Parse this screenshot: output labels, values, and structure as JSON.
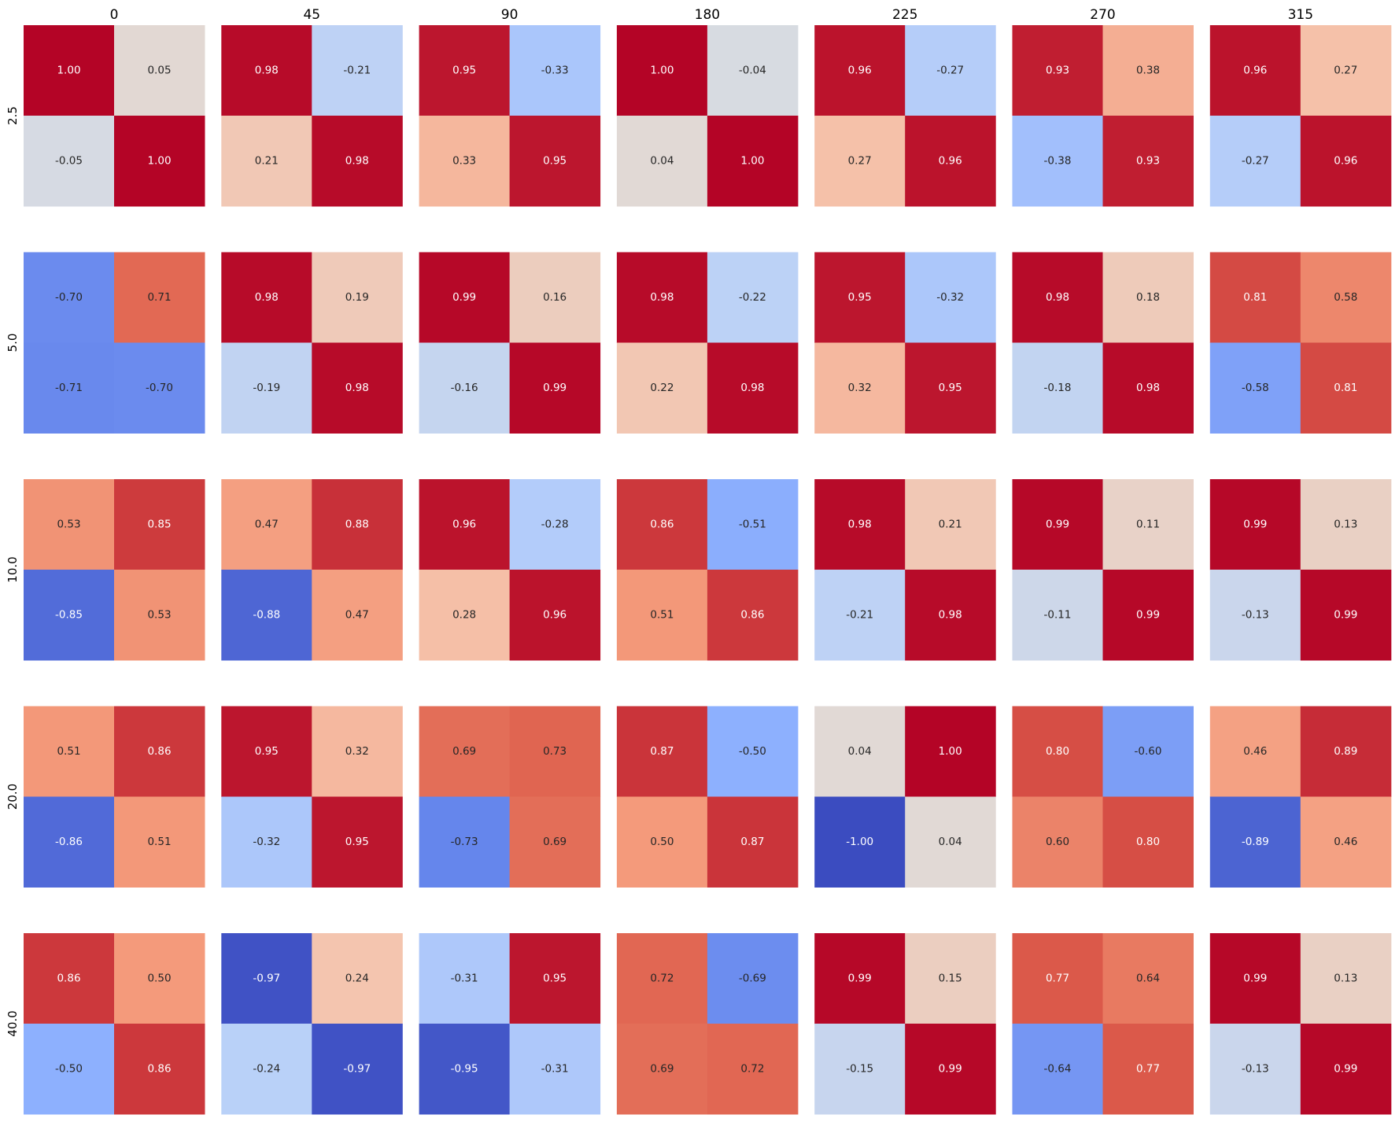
{
  "chart_data": {
    "type": "heatmap",
    "colormap": "coolwarm",
    "vmin": -1,
    "vmax": 1,
    "columns": [
      "0",
      "45",
      "90",
      "180",
      "225",
      "270",
      "315"
    ],
    "rows": [
      "2.5",
      "5.0",
      "10.0",
      "20.0",
      "40.0"
    ],
    "matrices": [
      [
        [
          [
            1.0,
            0.05
          ],
          [
            -0.05,
            1.0
          ]
        ],
        [
          [
            0.98,
            -0.21
          ],
          [
            0.21,
            0.98
          ]
        ],
        [
          [
            0.95,
            -0.33
          ],
          [
            0.33,
            0.95
          ]
        ],
        [
          [
            1.0,
            -0.04
          ],
          [
            0.04,
            1.0
          ]
        ],
        [
          [
            0.96,
            -0.27
          ],
          [
            0.27,
            0.96
          ]
        ],
        [
          [
            0.93,
            0.38
          ],
          [
            -0.38,
            0.93
          ]
        ],
        [
          [
            0.96,
            0.27
          ],
          [
            -0.27,
            0.96
          ]
        ]
      ],
      [
        [
          [
            -0.7,
            0.71
          ],
          [
            -0.71,
            -0.7
          ]
        ],
        [
          [
            0.98,
            0.19
          ],
          [
            -0.19,
            0.98
          ]
        ],
        [
          [
            0.99,
            0.16
          ],
          [
            -0.16,
            0.99
          ]
        ],
        [
          [
            0.98,
            -0.22
          ],
          [
            0.22,
            0.98
          ]
        ],
        [
          [
            0.95,
            -0.32
          ],
          [
            0.32,
            0.95
          ]
        ],
        [
          [
            0.98,
            0.18
          ],
          [
            -0.18,
            0.98
          ]
        ],
        [
          [
            0.81,
            0.58
          ],
          [
            -0.58,
            0.81
          ]
        ]
      ],
      [
        [
          [
            0.53,
            0.85
          ],
          [
            -0.85,
            0.53
          ]
        ],
        [
          [
            0.47,
            0.88
          ],
          [
            -0.88,
            0.47
          ]
        ],
        [
          [
            0.96,
            -0.28
          ],
          [
            0.28,
            0.96
          ]
        ],
        [
          [
            0.86,
            -0.51
          ],
          [
            0.51,
            0.86
          ]
        ],
        [
          [
            0.98,
            0.21
          ],
          [
            -0.21,
            0.98
          ]
        ],
        [
          [
            0.99,
            0.11
          ],
          [
            -0.11,
            0.99
          ]
        ],
        [
          [
            0.99,
            0.13
          ],
          [
            -0.13,
            0.99
          ]
        ]
      ],
      [
        [
          [
            0.51,
            0.86
          ],
          [
            -0.86,
            0.51
          ]
        ],
        [
          [
            0.95,
            0.32
          ],
          [
            -0.32,
            0.95
          ]
        ],
        [
          [
            0.69,
            0.73
          ],
          [
            -0.73,
            0.69
          ]
        ],
        [
          [
            0.87,
            -0.5
          ],
          [
            0.5,
            0.87
          ]
        ],
        [
          [
            0.04,
            1.0
          ],
          [
            -1.0,
            0.04
          ]
        ],
        [
          [
            0.8,
            -0.6
          ],
          [
            0.6,
            0.8
          ]
        ],
        [
          [
            0.46,
            0.89
          ],
          [
            -0.89,
            0.46
          ]
        ]
      ],
      [
        [
          [
            0.86,
            0.5
          ],
          [
            -0.5,
            0.86
          ]
        ],
        [
          [
            -0.97,
            0.24
          ],
          [
            -0.24,
            -0.97
          ]
        ],
        [
          [
            -0.31,
            0.95
          ],
          [
            -0.95,
            -0.31
          ]
        ],
        [
          [
            0.72,
            -0.69
          ],
          [
            0.69,
            0.72
          ]
        ],
        [
          [
            0.99,
            0.15
          ],
          [
            -0.15,
            0.99
          ]
        ],
        [
          [
            0.77,
            0.64
          ],
          [
            -0.64,
            0.77
          ]
        ],
        [
          [
            0.99,
            0.13
          ],
          [
            -0.13,
            0.99
          ]
        ]
      ]
    ]
  }
}
